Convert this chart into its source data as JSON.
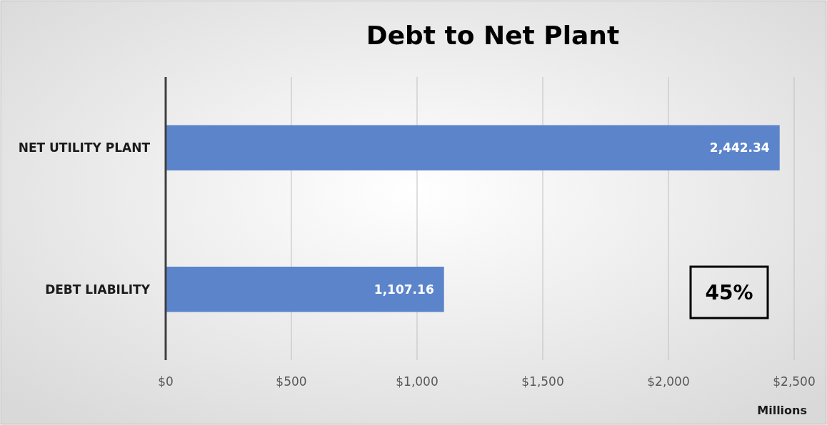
{
  "chart_data": {
    "type": "bar",
    "orientation": "horizontal",
    "title": "Debt to Net Plant",
    "xlabel": "Millions",
    "categories": [
      "NET UTILITY PLANT",
      "DEBT LIABILITY"
    ],
    "values": [
      2442.34,
      1107.16
    ],
    "color": "#5b84cb",
    "value_labels": [
      "2,442.34",
      "1,107.16"
    ],
    "xlim": [
      0,
      2500
    ],
    "xticks": [
      {
        "value": 0,
        "label": "$0"
      },
      {
        "value": 500,
        "label": "$500"
      },
      {
        "value": 1000,
        "label": "$1,000"
      },
      {
        "value": 1500,
        "label": "$1,500"
      },
      {
        "value": 2000,
        "label": "$2,000"
      },
      {
        "value": 2500,
        "label": "$2,500"
      }
    ],
    "grid": "x",
    "annotations": [
      "45%"
    ]
  }
}
